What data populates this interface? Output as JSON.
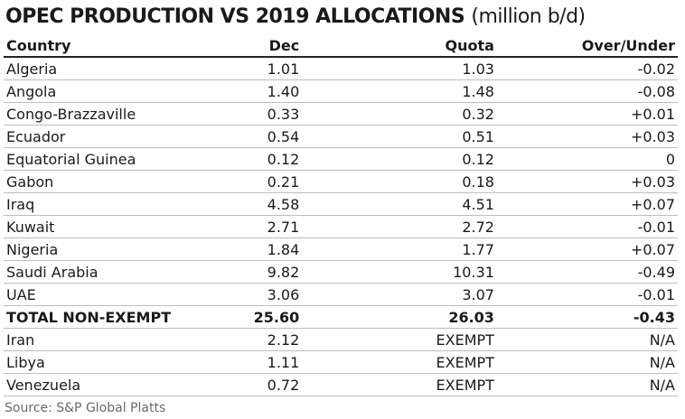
{
  "title": "OPEC PRODUCTION VS 2019 ALLOCATIONS",
  "title_unit": "(million b/d)",
  "headers": [
    "Country",
    "Dec",
    "Quota",
    "Over/Under"
  ],
  "rows": [
    {
      "country": "Algeria",
      "dec": "1.01",
      "quota": "1.03",
      "over_under": "-0.02"
    },
    {
      "country": "Angola",
      "dec": "1.40",
      "quota": "1.48",
      "over_under": "-0.08"
    },
    {
      "country": "Congo-Brazzaville",
      "dec": "0.33",
      "quota": "0.32",
      "over_under": "+0.01"
    },
    {
      "country": "Ecuador",
      "dec": "0.54",
      "quota": "0.51",
      "over_under": "+0.03"
    },
    {
      "country": "Equatorial Guinea",
      "dec": "0.12",
      "quota": "0.12",
      "over_under": "0"
    },
    {
      "country": "Gabon",
      "dec": "0.21",
      "quota": "0.18",
      "over_under": "+0.03"
    },
    {
      "country": "Iraq",
      "dec": "4.58",
      "quota": "4.51",
      "over_under": "+0.07"
    },
    {
      "country": "Kuwait",
      "dec": "2.71",
      "quota": "2.72",
      "over_under": "-0.01"
    },
    {
      "country": "Nigeria",
      "dec": "1.84",
      "quota": "1.77",
      "over_under": "+0.07"
    },
    {
      "country": "Saudi Arabia",
      "dec": "9.82",
      "quota": "10.31",
      "over_under": "-0.49"
    },
    {
      "country": "UAE",
      "dec": "3.06",
      "quota": "3.07",
      "over_under": "-0.01"
    },
    {
      "country": "TOTAL NON-EXEMPT",
      "dec": "25.60",
      "quota": "26.03",
      "over_under": "-0.43"
    },
    {
      "country": "Iran",
      "dec": "2.12",
      "quota": "EXEMPT",
      "over_under": "N/A"
    },
    {
      "country": "Libya",
      "dec": "1.11",
      "quota": "EXEMPT",
      "over_under": "N/A"
    },
    {
      "country": "Venezuela",
      "dec": "0.72",
      "quota": "EXEMPT",
      "over_under": "N/A"
    }
  ],
  "source": "Source: S&P Global Platts"
}
